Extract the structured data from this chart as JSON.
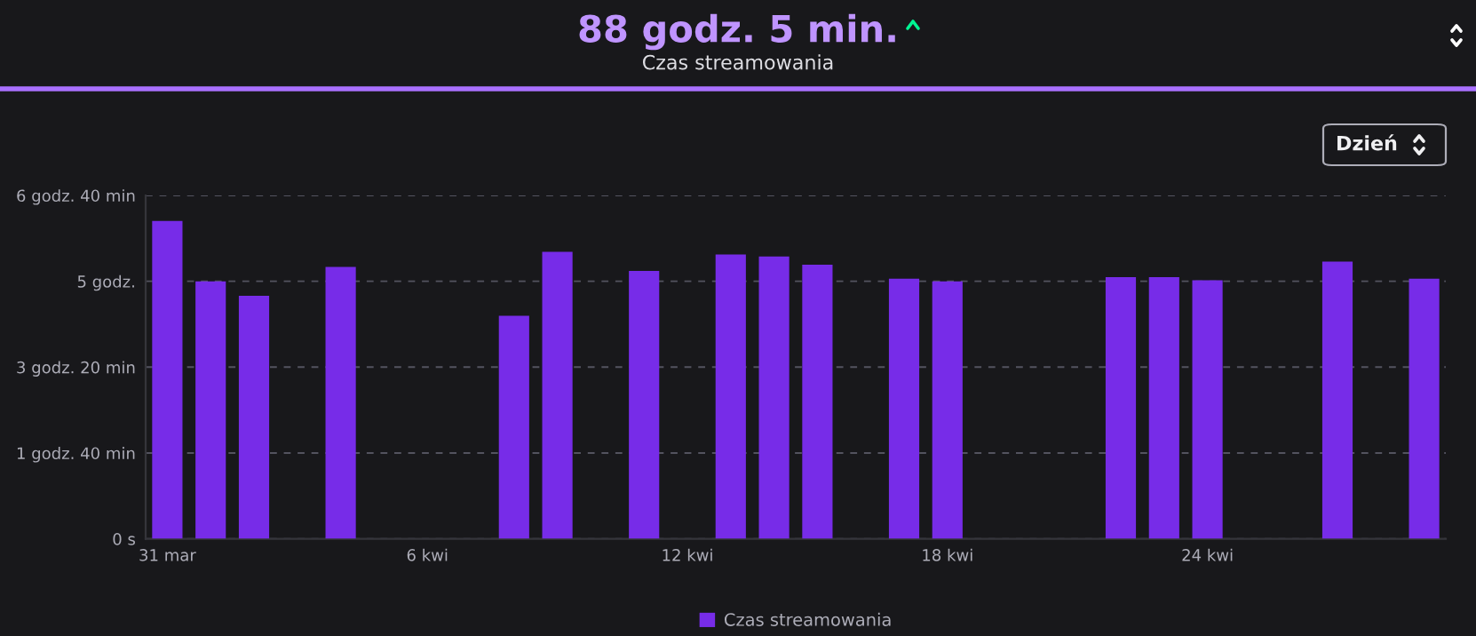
{
  "chart_data": {
    "type": "bar",
    "title": "88 godz. 5 min.",
    "subtitle": "Czas streamowania",
    "annotations": [
      "Dzień"
    ],
    "categories": [
      "31 mar",
      null,
      null,
      null,
      null,
      null,
      "6 kwi",
      null,
      null,
      null,
      null,
      null,
      "12 kwi",
      null,
      null,
      null,
      null,
      null,
      "18 kwi",
      null,
      null,
      null,
      null,
      null,
      "24 kwi",
      null,
      null,
      null,
      null,
      null
    ],
    "series": [
      {
        "name": "Czas streamowania",
        "color": "#772ce8",
        "values": [
          6.17,
          5.0,
          4.72,
          null,
          5.28,
          null,
          null,
          null,
          4.33,
          5.57,
          null,
          5.2,
          null,
          5.52,
          5.48,
          5.32,
          null,
          5.05,
          5.0,
          null,
          null,
          null,
          5.08,
          5.08,
          5.02,
          null,
          null,
          5.38,
          null,
          5.05
        ]
      }
    ],
    "ylim": [
      0,
      6.6667
    ],
    "yticks": [
      {
        "value": 0,
        "label": "0 s"
      },
      {
        "value": 1.6667,
        "label": "1 godz. 40 min"
      },
      {
        "value": 3.3333,
        "label": "3 godz. 20 min"
      },
      {
        "value": 5,
        "label": "5 godz."
      },
      {
        "value": 6.6667,
        "label": "6 godz. 40 min"
      }
    ],
    "grid": "y",
    "legend": "bottom"
  }
}
